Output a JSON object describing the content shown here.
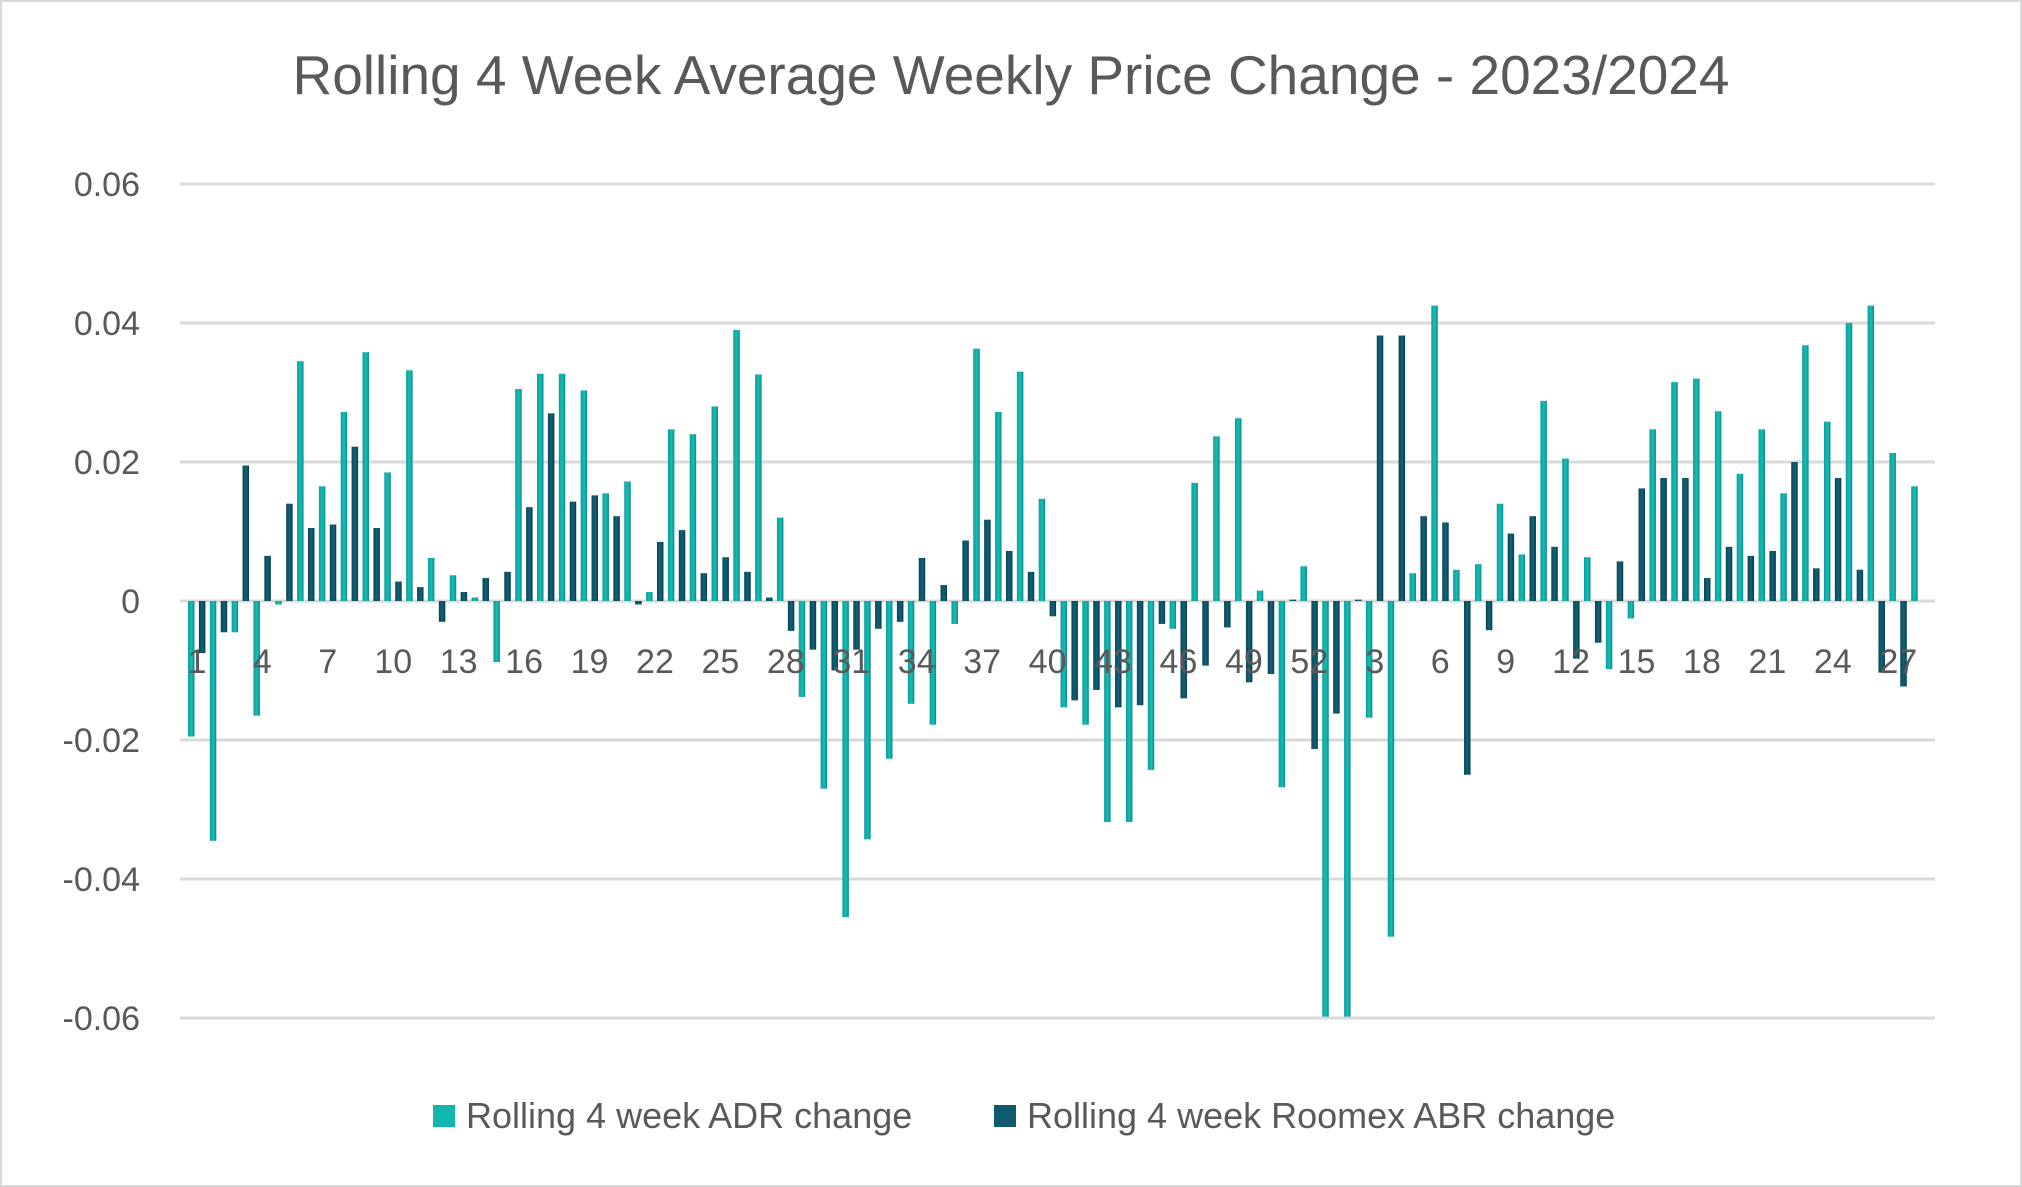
{
  "chart_data": {
    "type": "bar",
    "title": "Rolling 4 Week Average Weekly Price Change - 2023/2024",
    "xlabel": "",
    "ylabel": "",
    "ylim": [
      -0.06,
      0.06
    ],
    "yticks": [
      0.06,
      0.04,
      0.02,
      0,
      -0.02,
      -0.04,
      -0.06
    ],
    "ytick_labels": [
      "0.06",
      "0.04",
      "0.02",
      "0",
      "-0.02",
      "-0.04",
      "-0.06"
    ],
    "grid": true,
    "legend_position": "bottom",
    "categories": [
      "1",
      "2",
      "3",
      "4",
      "5",
      "6",
      "7",
      "8",
      "9",
      "10",
      "11",
      "12",
      "13",
      "14",
      "15",
      "16",
      "17",
      "18",
      "19",
      "20",
      "21",
      "22",
      "23",
      "24",
      "25",
      "26",
      "27",
      "28",
      "29",
      "30",
      "31",
      "32",
      "33",
      "34",
      "35",
      "36",
      "37",
      "38",
      "39",
      "40",
      "41",
      "42",
      "43",
      "44",
      "45",
      "46",
      "47",
      "48",
      "49",
      "50",
      "51",
      "52",
      "1",
      "2",
      "3",
      "4",
      "5",
      "6",
      "7",
      "8",
      "9",
      "10",
      "11",
      "12",
      "13",
      "14",
      "15",
      "16",
      "17",
      "18",
      "19",
      "20",
      "21",
      "22",
      "23",
      "24",
      "25",
      "26",
      "27",
      "28"
    ],
    "visible_tick_labels": [
      "1",
      "4",
      "7",
      "10",
      "13",
      "16",
      "19",
      "22",
      "25",
      "28",
      "31",
      "34",
      "37",
      "40",
      "43",
      "46",
      "49",
      "52",
      "3",
      "6",
      "9",
      "12",
      "15",
      "18",
      "21",
      "24",
      "27"
    ],
    "series": [
      {
        "name": "Rolling 4 week ADR change",
        "color": "#12b5b0",
        "values": [
          -0.0195,
          -0.0345,
          -0.0045,
          -0.0165,
          -0.0005,
          0.0345,
          0.0165,
          0.0272,
          0.0358,
          0.0185,
          0.0332,
          0.0062,
          0.0037,
          0.0005,
          -0.0088,
          0.0305,
          0.0327,
          0.0327,
          0.0303,
          0.0155,
          0.0172,
          0.0013,
          0.0247,
          0.024,
          0.028,
          0.039,
          0.0326,
          0.012,
          -0.0138,
          -0.027,
          -0.0455,
          -0.0343,
          -0.0227,
          -0.0148,
          -0.0178,
          -0.0033,
          0.0363,
          0.0272,
          0.033,
          0.0147,
          -0.0153,
          -0.0178,
          -0.0318,
          -0.0318,
          -0.0243,
          -0.004,
          0.017,
          0.0237,
          0.0263,
          0.0015,
          -0.0268,
          0.005,
          -0.0598,
          -0.0598,
          -0.0168,
          -0.0483,
          0.004,
          0.0425,
          0.0045,
          0.0053,
          0.014,
          0.0067,
          0.0288,
          0.0205,
          0.0063,
          -0.0098,
          -0.0025,
          0.0247,
          0.0315,
          0.032,
          0.0273,
          0.0183,
          0.0247,
          0.0155,
          0.0368,
          0.0258,
          0.04,
          0.0425,
          0.0213,
          0.0165
        ]
      },
      {
        "name": "Rolling 4 week Roomex ABR change",
        "color": "#0f5a6e",
        "values": [
          -0.0075,
          -0.0045,
          0.0195,
          0.0065,
          0.014,
          0.0105,
          0.011,
          0.0222,
          0.0105,
          0.0028,
          0.002,
          -0.003,
          0.0013,
          0.0033,
          0.0042,
          0.0135,
          0.027,
          0.0143,
          0.0152,
          0.0122,
          -0.0005,
          0.0085,
          0.0102,
          0.004,
          0.0063,
          0.0042,
          0.0005,
          -0.0043,
          -0.007,
          -0.01,
          -0.007,
          -0.004,
          -0.003,
          0.0062,
          0.0023,
          0.0087,
          0.0117,
          0.0072,
          0.0042,
          -0.0022,
          -0.0143,
          -0.0128,
          -0.0153,
          -0.015,
          -0.0033,
          -0.014,
          -0.0093,
          -0.0038,
          -0.0117,
          -0.0105,
          0.0002,
          -0.0213,
          -0.0162,
          0.0002,
          0.0382,
          0.0382,
          0.0122,
          0.0113,
          -0.025,
          -0.0042,
          0.0097,
          0.0122,
          0.0078,
          -0.0083,
          -0.006,
          0.0057,
          0.0162,
          0.0177,
          0.0177,
          0.0033,
          0.0078,
          0.0065,
          0.0072,
          0.02,
          0.0047,
          0.0177,
          0.0045,
          -0.0103,
          -0.0123,
          0
        ]
      }
    ]
  }
}
